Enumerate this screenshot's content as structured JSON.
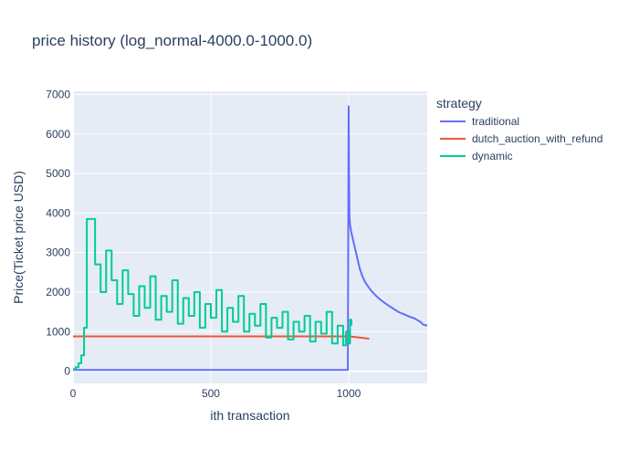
{
  "chart_data": {
    "type": "line",
    "title": "price history (log_normal-4000.0-1000.0)",
    "xlabel": "ith transaction",
    "ylabel": "Price(Ticket price USD)",
    "xlim": [
      0,
      1285
    ],
    "ylim": [
      -310,
      7080
    ],
    "x_ticks": [
      0,
      500,
      1000
    ],
    "y_ticks": [
      0,
      1000,
      2000,
      3000,
      4000,
      5000,
      6000,
      7000
    ],
    "x_tick_labels": [
      "0",
      "500",
      "1000"
    ],
    "y_tick_labels": [
      "0",
      "1000",
      "2000",
      "3000",
      "4000",
      "5000",
      "6000",
      "7000"
    ],
    "grid": true,
    "legend_title": "strategy",
    "legend_position": "right",
    "series": [
      {
        "name": "traditional",
        "color": "#636efa",
        "mode": "line",
        "x": [
          0,
          997,
          997,
          1000,
          1001,
          1003,
          1005,
          1010,
          1020,
          1030,
          1040,
          1050,
          1060,
          1080,
          1100,
          1120,
          1140,
          1160,
          1180,
          1200,
          1220,
          1240,
          1260,
          1270,
          1285
        ],
        "y": [
          30,
          30,
          30,
          6700,
          5200,
          3900,
          3700,
          3500,
          3200,
          2900,
          2600,
          2400,
          2250,
          2050,
          1900,
          1780,
          1680,
          1590,
          1500,
          1440,
          1380,
          1330,
          1250,
          1180,
          1150
        ]
      },
      {
        "name": "dutch_auction_with_refund",
        "color": "#ef553b",
        "mode": "line",
        "x": [
          0,
          1000,
          1040,
          1075
        ],
        "y": [
          880,
          880,
          850,
          820
        ]
      },
      {
        "name": "dynamic",
        "color": "#00cc96",
        "mode": "step",
        "x": [
          0,
          10,
          20,
          30,
          40,
          50,
          80,
          100,
          120,
          140,
          160,
          180,
          200,
          220,
          240,
          260,
          280,
          300,
          320,
          340,
          360,
          380,
          400,
          420,
          440,
          460,
          480,
          500,
          520,
          540,
          560,
          580,
          600,
          620,
          640,
          660,
          680,
          700,
          720,
          740,
          760,
          780,
          800,
          820,
          840,
          860,
          880,
          900,
          920,
          940,
          960,
          980,
          990,
          1000,
          1005,
          1010
        ],
        "y": [
          50,
          100,
          200,
          400,
          1100,
          3850,
          2700,
          2000,
          3050,
          2300,
          1700,
          2550,
          1950,
          1400,
          2150,
          1600,
          2400,
          1300,
          1900,
          1500,
          2300,
          1200,
          1850,
          1400,
          2000,
          1100,
          1700,
          1350,
          2050,
          1000,
          1600,
          1250,
          1900,
          1000,
          1450,
          1150,
          1700,
          850,
          1350,
          1100,
          1500,
          800,
          1250,
          1000,
          1400,
          750,
          1250,
          950,
          1500,
          700,
          1150,
          650,
          1000,
          700,
          1300,
          1150
        ]
      }
    ]
  }
}
